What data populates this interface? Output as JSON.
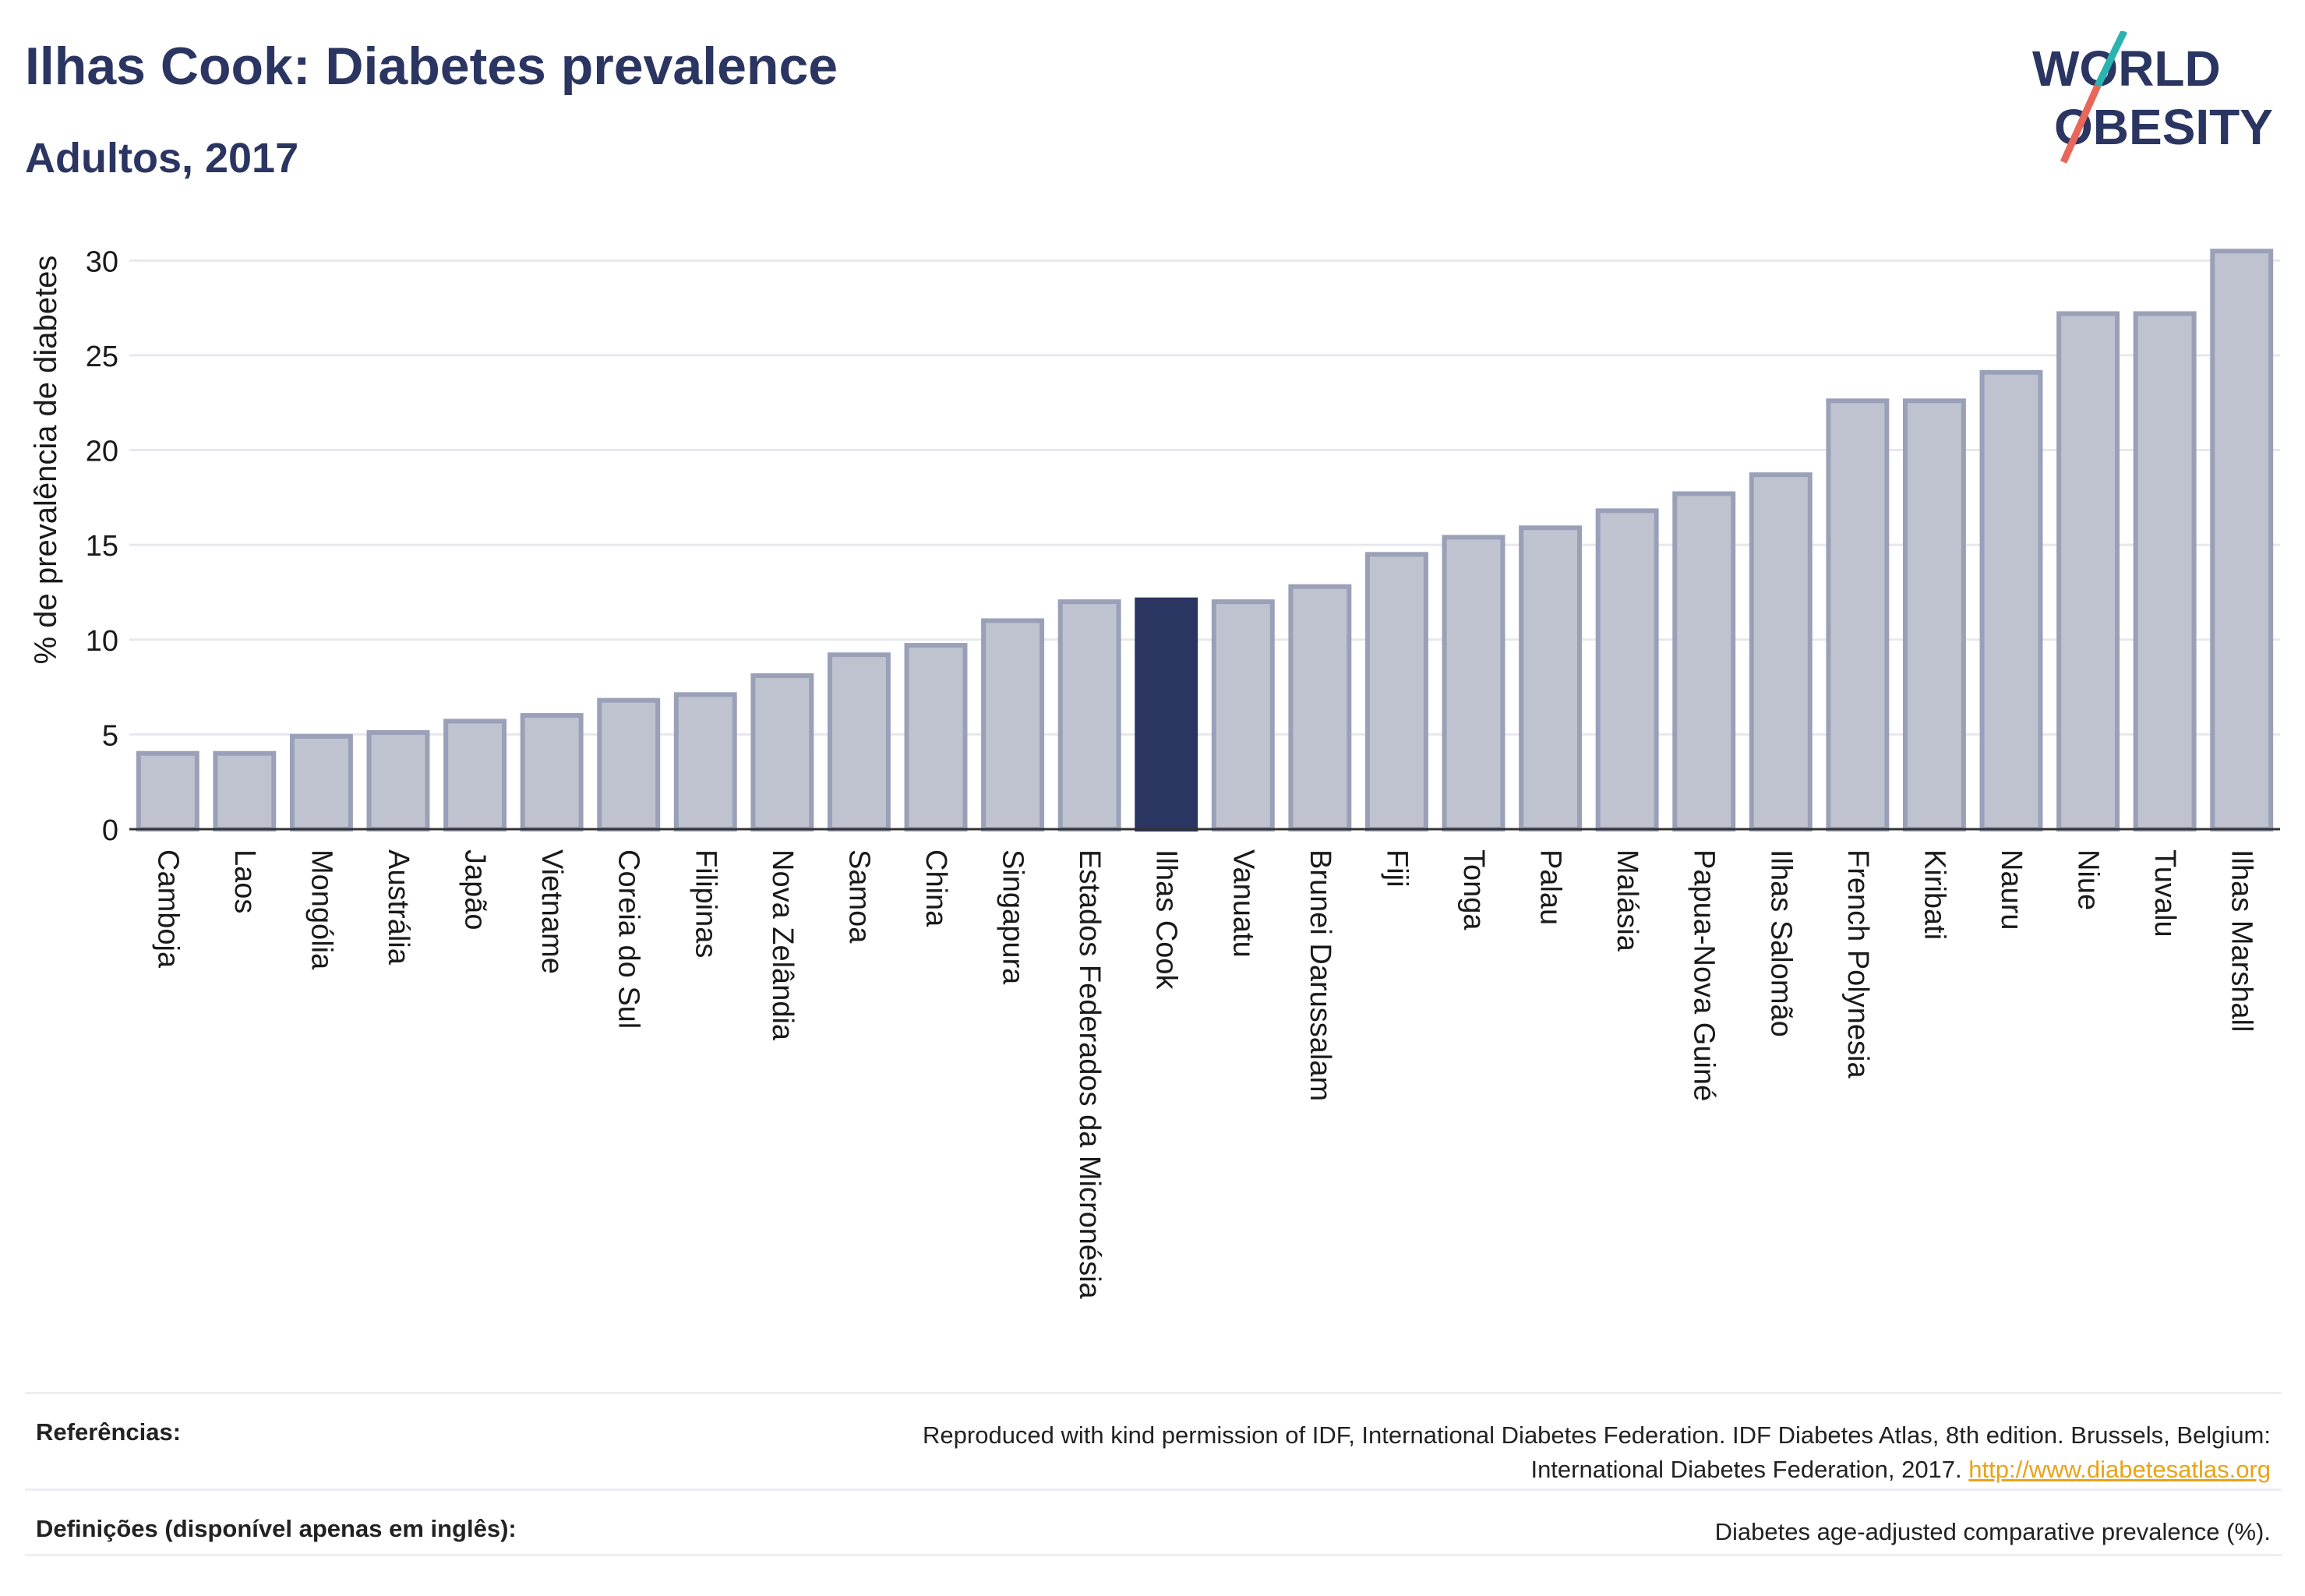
{
  "header": {
    "title": "Ilhas Cook: Diabetes prevalence",
    "subtitle": "Adultos, 2017"
  },
  "logo": {
    "line1": "WORLD",
    "line2": "OBESITY",
    "colors": {
      "text": "#2b3561",
      "slash_teal": "#2bb3b1",
      "slash_red": "#e8675a"
    }
  },
  "colors": {
    "bar_default": "#bfc3d0",
    "bar_border": "#9aa0b8",
    "bar_highlight": "#2b3561",
    "axis_text": "#1a1a1a",
    "grid": "#e6e8ee"
  },
  "chart_data": {
    "type": "bar",
    "ylabel": "% de prevalência de diabetes",
    "xlabel": "",
    "ylim": [
      0,
      31
    ],
    "yticks": [
      0,
      5,
      10,
      15,
      20,
      25,
      30
    ],
    "grid": true,
    "highlight": "Ilhas Cook",
    "categories": [
      "Camboja",
      "Laos",
      "Mongólia",
      "Austrália",
      "Japão",
      "Vietname",
      "Coreia do Sul",
      "Filipinas",
      "Nova Zelândia",
      "Samoa",
      "China",
      "Singapura",
      "Estados Federados da Micronésia",
      "Ilhas Cook",
      "Vanuatu",
      "Brunei Darussalam",
      "Fiji",
      "Tonga",
      "Palau",
      "Malásia",
      "Papua-Nova Guiné",
      "Ilhas Salomão",
      "French Polynesia",
      "Kiribati",
      "Nauru",
      "Niue",
      "Tuvalu",
      "Ilhas Marshall"
    ],
    "values": [
      4.0,
      4.0,
      4.9,
      5.1,
      5.7,
      6.0,
      6.8,
      7.1,
      8.1,
      9.2,
      9.7,
      11.0,
      12.0,
      12.1,
      12.0,
      12.8,
      14.5,
      15.4,
      15.9,
      16.8,
      17.7,
      18.7,
      22.6,
      22.6,
      24.1,
      27.2,
      27.2,
      30.5
    ]
  },
  "footer": {
    "ref_label": "Referências:",
    "ref_text_1": "Reproduced with kind permission of IDF, International Diabetes Federation. IDF Diabetes Atlas, 8th edition. Brussels, Belgium:",
    "ref_text_2": "International Diabetes Federation, 2017.",
    "ref_link": "http://www.diabetesatlas.org",
    "def_label": "Definições (disponível apenas em inglês):",
    "def_text": "Diabetes age-adjusted comparative prevalence (%)."
  }
}
